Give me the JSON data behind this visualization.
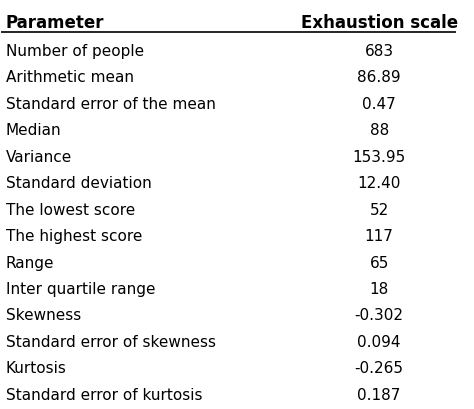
{
  "headers": [
    "Parameter",
    "Exhaustion scale"
  ],
  "rows": [
    [
      "Number of people",
      "683"
    ],
    [
      "Arithmetic mean",
      "86.89"
    ],
    [
      "Standard error of the mean",
      "0.47"
    ],
    [
      "Median",
      "88"
    ],
    [
      "Variance",
      "153.95"
    ],
    [
      "Standard deviation",
      "12.40"
    ],
    [
      "The lowest score",
      "52"
    ],
    [
      "The highest score",
      "117"
    ],
    [
      "Range",
      "65"
    ],
    [
      "Inter quartile range",
      "18"
    ],
    [
      "Skewness",
      "-0.302"
    ],
    [
      "Standard error of skewness",
      "0.094"
    ],
    [
      "Kurtosis",
      "-0.265"
    ],
    [
      "Standard error of kurtosis",
      "0.187"
    ]
  ],
  "bg_color": "#ffffff",
  "header_line_color": "#000000",
  "text_color": "#000000",
  "font_size": 11,
  "header_font_size": 12
}
